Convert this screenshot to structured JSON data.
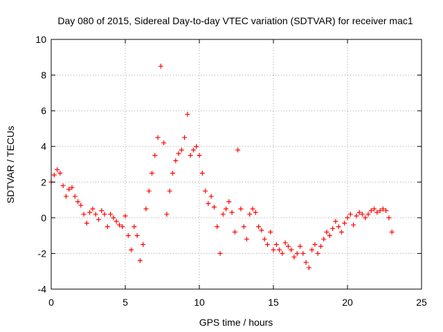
{
  "chart_data": {
    "type": "scatter",
    "title": "Day 080 of 2015, Sidereal Day-to-day VTEC variation (SDTVAR) for receiver mac1",
    "xlabel": "GPS time / hours",
    "ylabel": "SDTVAR / TECUs",
    "xlim": [
      0,
      25
    ],
    "ylim": [
      -4,
      10
    ],
    "xticks": [
      0,
      5,
      10,
      15,
      20,
      25
    ],
    "yticks": [
      -4,
      -2,
      0,
      2,
      4,
      6,
      8,
      10
    ],
    "grid": true,
    "marker": "+",
    "marker_color": "#ff0000",
    "series": [
      {
        "name": "SDTVAR",
        "x": [
          0.0,
          0.2,
          0.4,
          0.6,
          0.8,
          1.0,
          1.2,
          1.4,
          1.6,
          1.8,
          2.0,
          2.2,
          2.4,
          2.6,
          2.8,
          3.0,
          3.2,
          3.4,
          3.6,
          3.8,
          4.0,
          4.2,
          4.4,
          4.6,
          4.8,
          5.0,
          5.2,
          5.4,
          5.6,
          5.8,
          6.0,
          6.2,
          6.4,
          6.6,
          6.8,
          7.0,
          7.2,
          7.4,
          7.6,
          7.8,
          8.0,
          8.2,
          8.4,
          8.6,
          8.8,
          9.0,
          9.2,
          9.4,
          9.6,
          9.8,
          10.0,
          10.2,
          10.4,
          10.6,
          10.8,
          11.0,
          11.2,
          11.4,
          11.6,
          11.8,
          12.0,
          12.2,
          12.4,
          12.6,
          12.8,
          13.0,
          13.2,
          13.4,
          13.6,
          13.8,
          14.0,
          14.2,
          14.4,
          14.6,
          14.8,
          15.0,
          15.2,
          15.4,
          15.6,
          15.8,
          16.0,
          16.2,
          16.4,
          16.6,
          16.8,
          17.0,
          17.2,
          17.4,
          17.6,
          17.8,
          18.0,
          18.2,
          18.4,
          18.6,
          18.8,
          19.0,
          19.2,
          19.4,
          19.6,
          19.8,
          20.0,
          20.2,
          20.4,
          20.6,
          20.8,
          21.0,
          21.2,
          21.4,
          21.6,
          21.8,
          22.0,
          22.2,
          22.4,
          22.6,
          22.8,
          23.0
        ],
        "y": [
          2.0,
          2.4,
          2.7,
          2.5,
          1.8,
          1.2,
          1.6,
          1.7,
          1.2,
          0.9,
          0.7,
          0.2,
          -0.3,
          0.3,
          0.5,
          0.2,
          -0.1,
          0.4,
          0.2,
          -0.5,
          0.2,
          0.0,
          -0.2,
          -0.4,
          -0.5,
          0.1,
          -1.0,
          -1.8,
          -0.5,
          -1.0,
          -2.4,
          -1.5,
          0.5,
          1.5,
          2.5,
          3.5,
          4.5,
          8.5,
          4.2,
          0.2,
          1.5,
          2.5,
          3.2,
          3.6,
          3.8,
          4.5,
          5.8,
          3.5,
          3.8,
          4.0,
          3.5,
          2.5,
          1.5,
          0.8,
          1.2,
          0.6,
          -0.5,
          -2.0,
          0.2,
          0.5,
          0.9,
          0.3,
          -0.8,
          3.8,
          0.5,
          -0.5,
          -1.2,
          0.2,
          0.5,
          0.3,
          -0.5,
          -0.7,
          -1.2,
          -1.5,
          -0.8,
          -1.8,
          -1.5,
          -1.8,
          -2.0,
          -1.4,
          -1.6,
          -1.8,
          -2.2,
          -2.0,
          -1.6,
          -2.0,
          -2.5,
          -2.8,
          -1.8,
          -1.5,
          -2.0,
          -1.6,
          -1.2,
          -0.8,
          -1.0,
          -0.6,
          -0.2,
          -0.5,
          -0.8,
          -0.3,
          0.0,
          0.2,
          -0.4,
          0.1,
          0.3,
          0.2,
          0.0,
          0.2,
          0.4,
          0.5,
          0.3,
          0.4,
          0.5,
          0.4,
          0.0,
          -0.8
        ]
      }
    ]
  }
}
